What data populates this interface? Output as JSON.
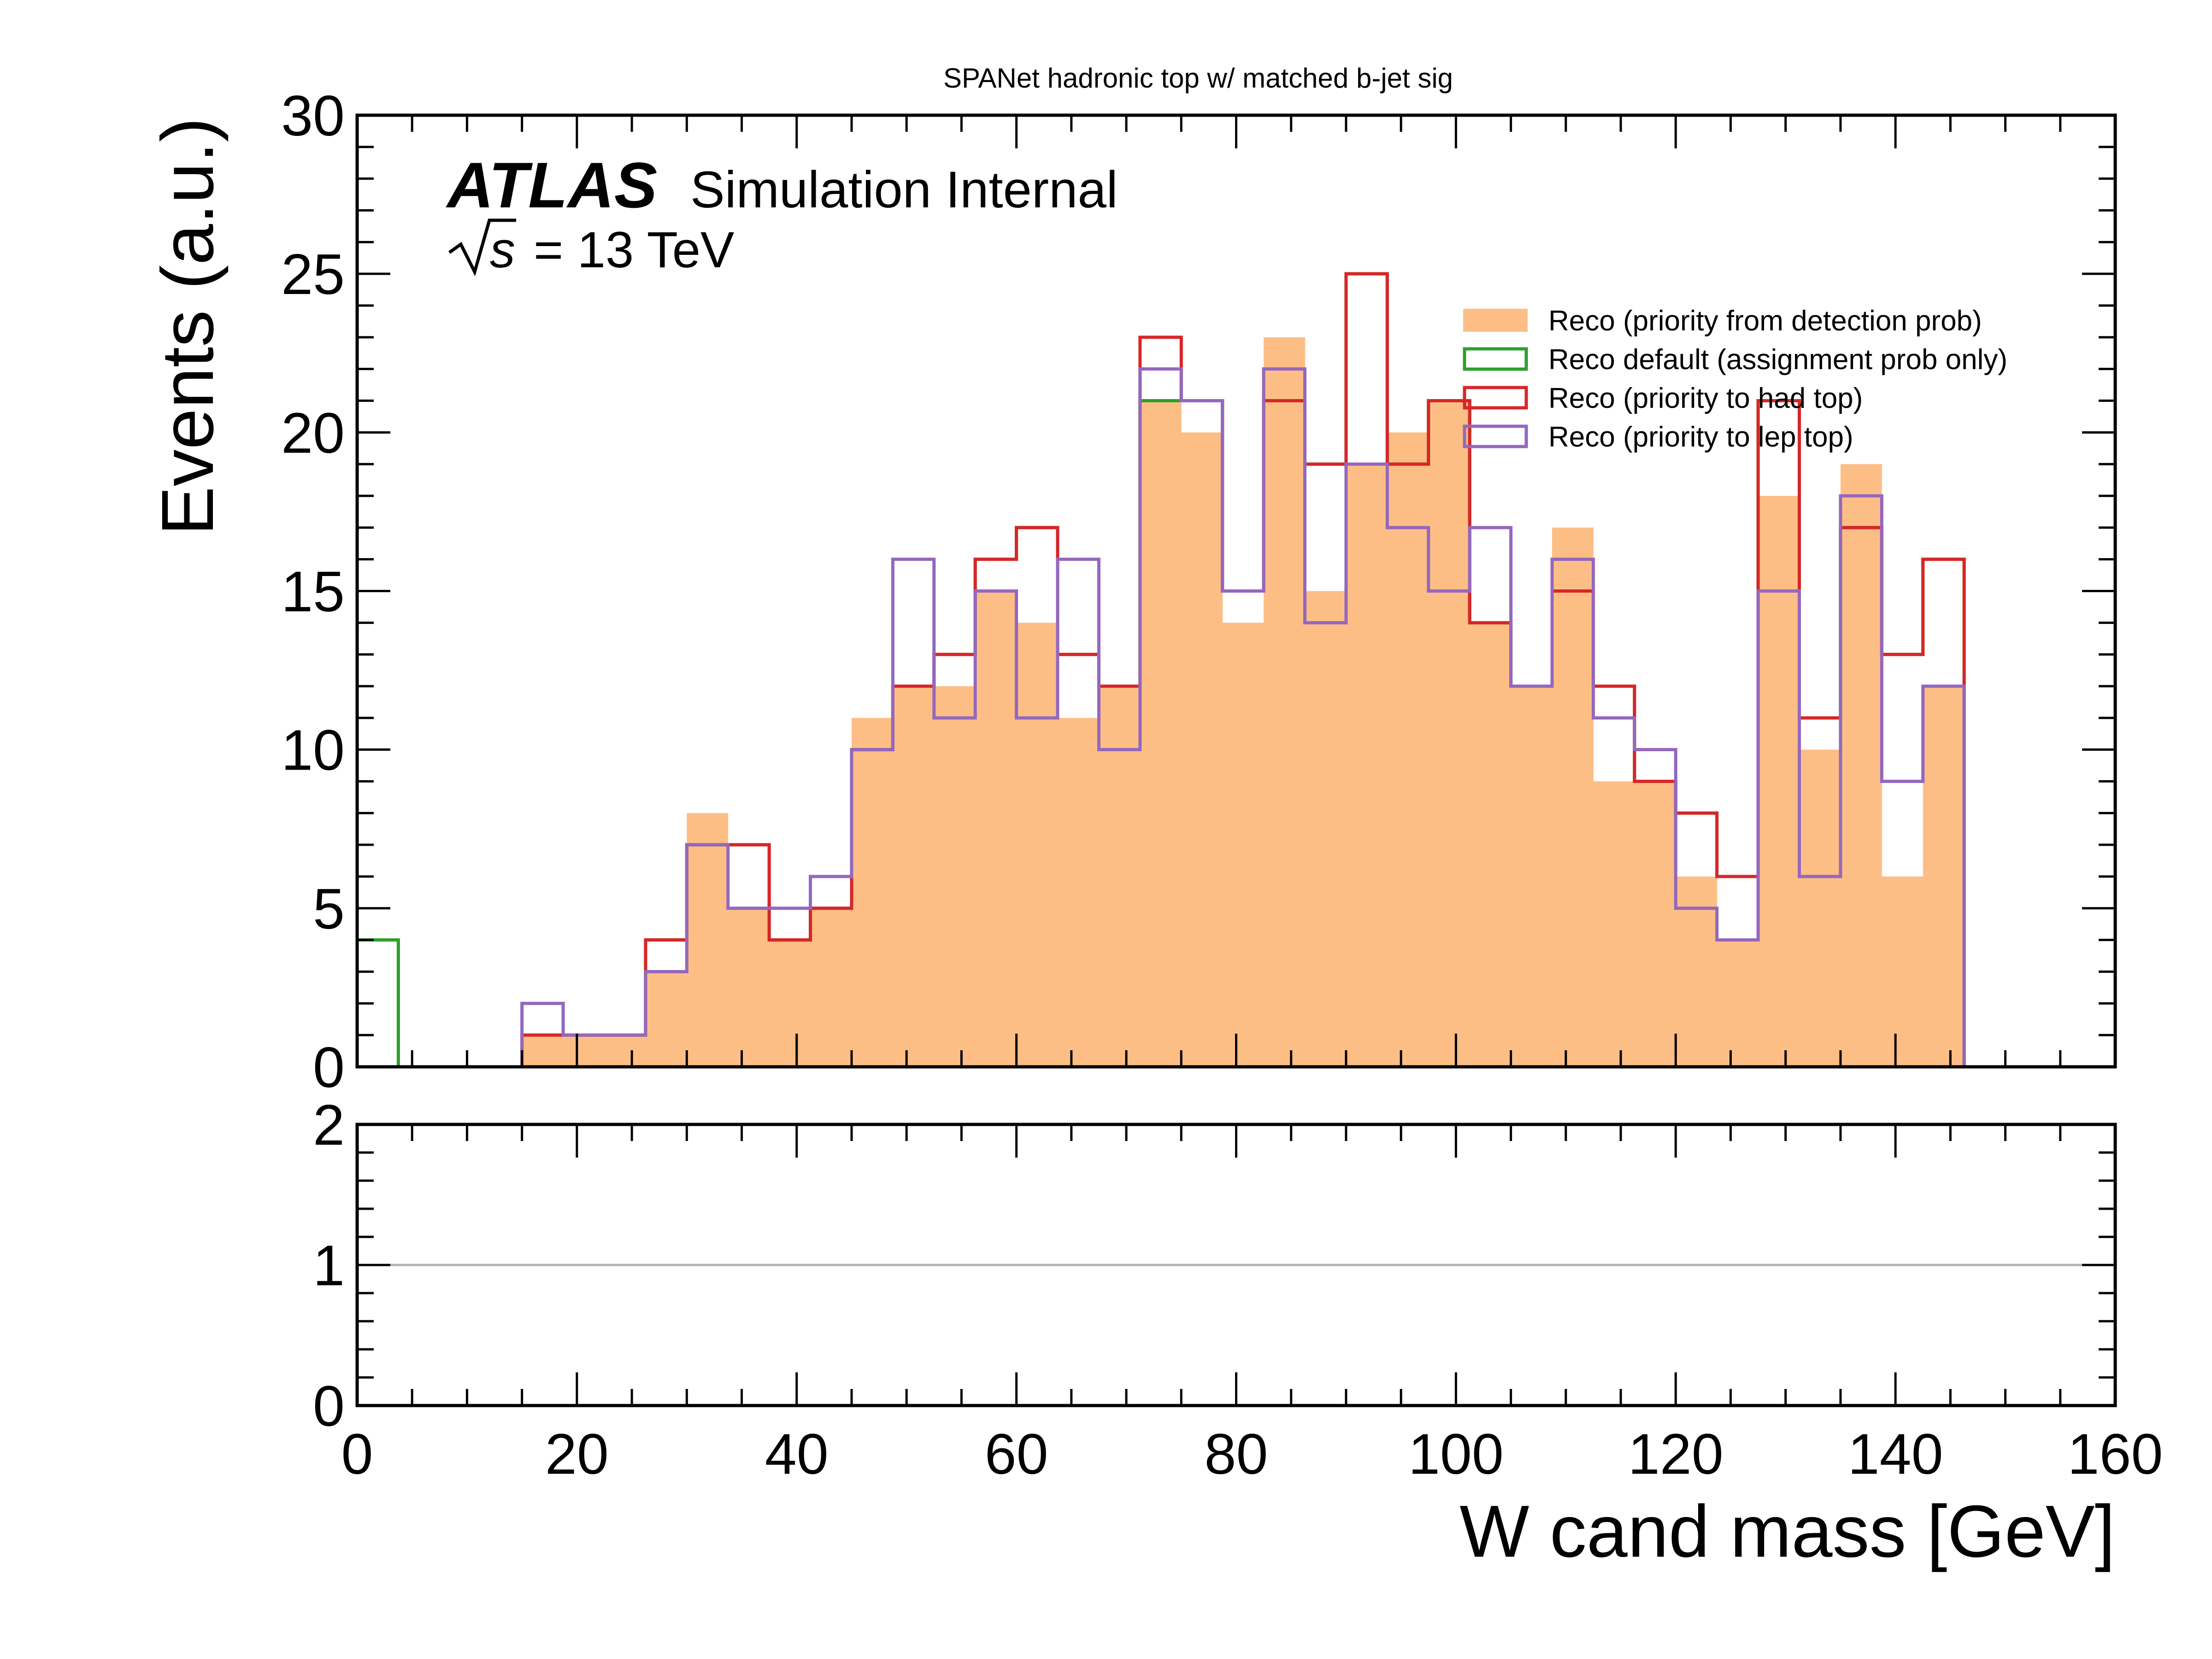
{
  "chart_data": {
    "type": "histogram",
    "title": "SPANet hadronic top w/ matched b-jet sig",
    "experiment_label": "ATLAS",
    "experiment_sublabel": "Simulation Internal",
    "energy_label": "= 13 TeV",
    "energy_symbol_s": "s",
    "xlabel": "W cand mass [GeV]",
    "ylabel": "Events (a.u.)",
    "xlim": [
      0,
      160
    ],
    "ylim": [
      0,
      30
    ],
    "ratio_ylim": [
      0,
      2
    ],
    "x_ticks": [
      "0",
      "20",
      "40",
      "60",
      "80",
      "100",
      "120",
      "140",
      "160"
    ],
    "y_ticks": [
      "0",
      "5",
      "10",
      "15",
      "20",
      "25",
      "30"
    ],
    "ratio_y_ticks": [
      "0",
      "1",
      "2"
    ],
    "ratio_reference": 1,
    "bin_edges": [
      0,
      3.75,
      7.5,
      11.25,
      15,
      18.75,
      22.5,
      26.25,
      30,
      33.75,
      37.5,
      41.25,
      45,
      48.75,
      52.5,
      56.25,
      60,
      63.75,
      67.5,
      71.25,
      75,
      78.75,
      82.5,
      86.25,
      90,
      93.75,
      97.5,
      101.25,
      105,
      108.75,
      112.5,
      116.25,
      120,
      123.75,
      127.5,
      131.25,
      135,
      138.75,
      142.5,
      146.25,
      150
    ],
    "legend_position": "top-right",
    "series": [
      {
        "name": "Reco (priority from detection prob)",
        "style": "filled",
        "color": "#fdbe86",
        "values": [
          0,
          0,
          0,
          0,
          1,
          1,
          1,
          3,
          8,
          5,
          4,
          5,
          11,
          12,
          12,
          15,
          14,
          11,
          12,
          21,
          20,
          14,
          23,
          15,
          19,
          20,
          21,
          14,
          12,
          17,
          9,
          9,
          6,
          4,
          18,
          10,
          19,
          6,
          12,
          0
        ]
      },
      {
        "name": "Reco default (assignment prob only)",
        "style": "step",
        "color": "#2ca02c",
        "values": [
          4,
          0,
          0,
          0,
          1,
          1,
          1,
          4,
          7,
          7,
          4,
          5,
          10,
          12,
          13,
          16,
          17,
          13,
          12,
          21,
          21,
          15,
          21,
          19,
          25,
          19,
          21,
          14,
          12,
          15,
          12,
          9,
          8,
          6,
          21,
          11,
          17,
          13,
          16,
          0
        ]
      },
      {
        "name": "Reco (priority to had top)",
        "style": "step",
        "color": "#d62728",
        "values": [
          0,
          0,
          0,
          0,
          1,
          1,
          1,
          4,
          7,
          7,
          4,
          5,
          10,
          12,
          13,
          16,
          17,
          13,
          12,
          23,
          21,
          15,
          21,
          19,
          25,
          19,
          21,
          14,
          12,
          15,
          12,
          9,
          8,
          6,
          21,
          11,
          17,
          13,
          16,
          0
        ]
      },
      {
        "name": "Reco (priority to lep top)",
        "style": "step",
        "color": "#9467bd",
        "values": [
          0,
          0,
          0,
          0,
          2,
          1,
          1,
          3,
          7,
          5,
          5,
          6,
          10,
          16,
          11,
          15,
          11,
          16,
          10,
          22,
          21,
          15,
          22,
          14,
          19,
          17,
          15,
          17,
          12,
          16,
          11,
          10,
          5,
          4,
          15,
          6,
          18,
          9,
          12,
          0
        ]
      }
    ]
  }
}
